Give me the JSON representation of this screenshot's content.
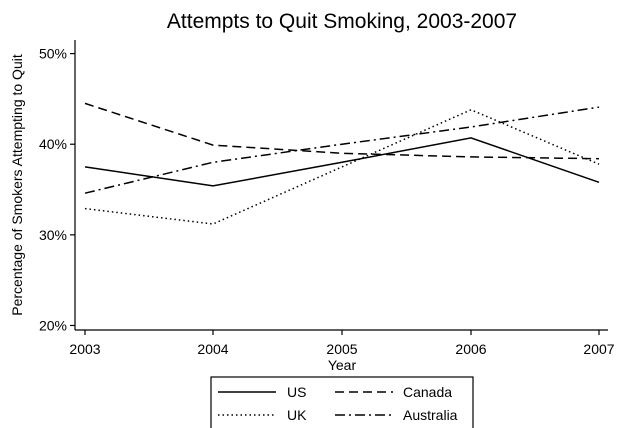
{
  "chart_data": {
    "type": "line",
    "title": "Attempts to Quit Smoking, 2003-2007",
    "xlabel": "Year",
    "ylabel": "Percentage of Smokers Attempting to Quit",
    "x": [
      2003,
      2004,
      2005,
      2006,
      2007
    ],
    "x_tick_labels": [
      "2003",
      "2004",
      "2005",
      "2006",
      "2007"
    ],
    "ylim": [
      19.5,
      51.5
    ],
    "y_ticks": [
      20,
      30,
      40,
      50
    ],
    "y_tick_labels": [
      "20%",
      "30%",
      "40%",
      "50%"
    ],
    "grid": false,
    "legend_position": "bottom",
    "series": [
      {
        "name": "US",
        "dash": "solid",
        "values": [
          37.5,
          35.4,
          38.0,
          40.7,
          35.8
        ]
      },
      {
        "name": "Canada",
        "dash": "dashed",
        "values": [
          44.5,
          39.9,
          39.0,
          38.6,
          38.4
        ]
      },
      {
        "name": "UK",
        "dash": "dotted",
        "values": [
          32.9,
          31.2,
          37.5,
          43.8,
          37.8
        ]
      },
      {
        "name": "Australia",
        "dash": "dashdot",
        "values": [
          34.6,
          38.0,
          40.0,
          41.9,
          44.1
        ]
      }
    ]
  }
}
